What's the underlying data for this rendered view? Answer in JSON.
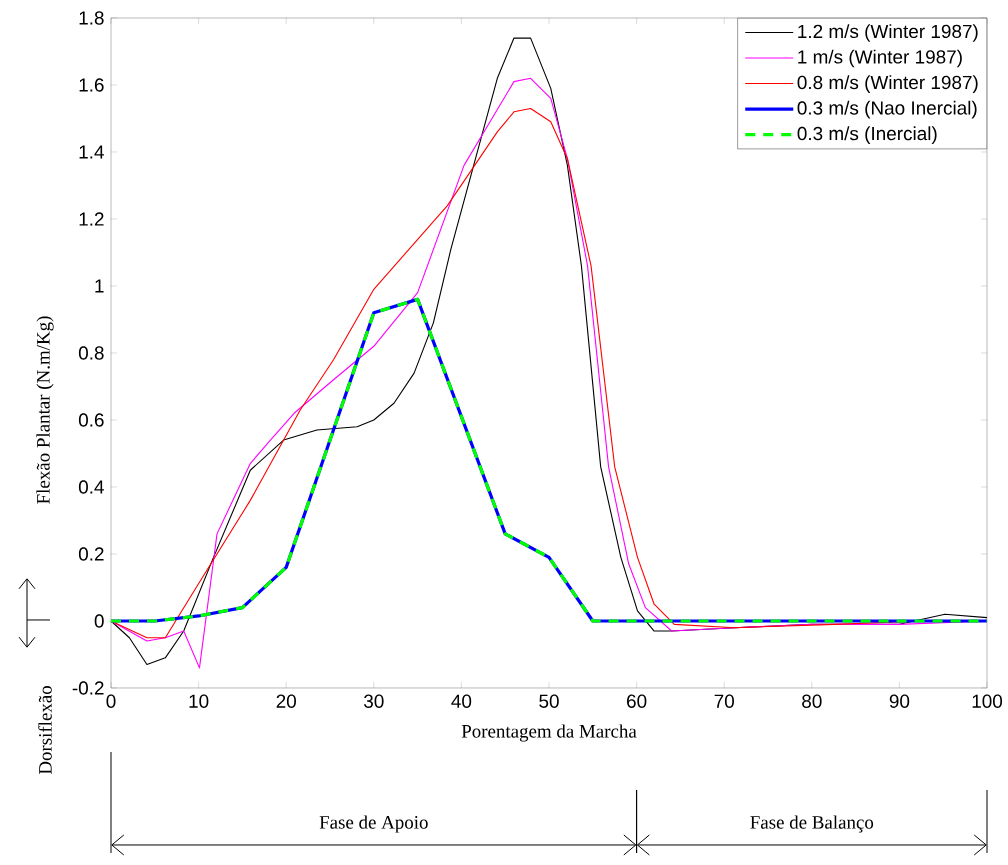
{
  "chart_data": {
    "type": "line",
    "xlabel": "Porentagem da Marcha",
    "ylabel": "Flexão Plantar (N.m/Kg)",
    "annotations": [
      "Dorsiflexão",
      "Fase de Apoio",
      "Fase de Balanço"
    ],
    "xlim": [
      0,
      100
    ],
    "ylim": [
      -0.2,
      1.8
    ],
    "xticks": [
      0,
      10,
      20,
      30,
      40,
      50,
      60,
      70,
      80,
      90,
      100
    ],
    "yticks": [
      -0.2,
      0,
      0.2,
      0.4,
      0.6,
      0.8,
      1,
      1.2,
      1.4,
      1.6,
      1.8
    ],
    "legend": "top right",
    "series": [
      {
        "name": "1.2 m/s (Winter 1987)",
        "color": "#000000",
        "x": [
          0,
          2.1,
          4.1,
          6.2,
          8.3,
          11.7,
          15.9,
          19.7,
          23.5,
          28.1,
          30,
          32.3,
          34.6,
          36.8,
          38.8,
          44.1,
          46,
          47.9,
          50.2,
          52.1,
          53.7,
          55.9,
          58.2,
          60.1,
          62,
          64,
          71.2,
          80,
          90,
          95.2,
          100
        ],
        "values": [
          0,
          -0.05,
          -0.13,
          -0.11,
          -0.03,
          0.19,
          0.45,
          0.54,
          0.57,
          0.58,
          0.6,
          0.65,
          0.74,
          0.89,
          1.11,
          1.62,
          1.74,
          1.74,
          1.59,
          1.36,
          1.06,
          0.46,
          0.19,
          0.03,
          -0.03,
          -0.03,
          -0.02,
          -0.01,
          -0.01,
          0.02,
          0.01
        ]
      },
      {
        "name": "1 m/s (Winter 1987)",
        "color": "#ff00ff",
        "x": [
          0,
          4.1,
          6.2,
          8.3,
          10.1,
          12.1,
          15.9,
          18.2,
          20.9,
          25.4,
          30,
          35,
          40.3,
          46,
          47.9,
          50.2,
          52.1,
          54.4,
          56.8,
          59.1,
          61,
          64,
          71.2,
          80,
          90,
          100
        ],
        "values": [
          0,
          -0.06,
          -0.05,
          -0.03,
          -0.14,
          0.26,
          0.47,
          0.54,
          0.62,
          0.72,
          0.82,
          0.98,
          1.36,
          1.61,
          1.62,
          1.56,
          1.38,
          1.06,
          0.46,
          0.17,
          0.04,
          -0.03,
          -0.02,
          -0.01,
          -0.01,
          0
        ]
      },
      {
        "name": "0.8 m/s (Winter 1987)",
        "color": "#ff0000",
        "x": [
          0,
          4.1,
          6.2,
          10.2,
          15.9,
          21.6,
          25.4,
          30,
          38.4,
          44.1,
          46,
          47.9,
          50.2,
          52.1,
          54.8,
          57.5,
          60.1,
          62,
          64.3,
          71.2,
          82.6,
          92.6,
          100
        ],
        "values": [
          0,
          -0.05,
          -0.05,
          0.12,
          0.36,
          0.63,
          0.78,
          0.99,
          1.24,
          1.46,
          1.52,
          1.53,
          1.49,
          1.38,
          1.06,
          0.46,
          0.19,
          0.05,
          -0.01,
          -0.02,
          -0.01,
          0,
          0
        ]
      },
      {
        "name": "0.3 m/s (Nao Inercial)",
        "color": "#0000ff",
        "line_style": "solid",
        "x": [
          0,
          5,
          10,
          15,
          20,
          30,
          35,
          45,
          50,
          55,
          100
        ],
        "values": [
          0,
          0,
          0.015,
          0.04,
          0.16,
          0.92,
          0.96,
          0.26,
          0.19,
          0,
          0
        ]
      },
      {
        "name": "0.3 m/s (Inercial)",
        "color": "#00ff00",
        "line_style": "dashed",
        "x": [
          0,
          5,
          10,
          15,
          20,
          30,
          35,
          45,
          50,
          55,
          100
        ],
        "values": [
          0,
          0,
          0.015,
          0.04,
          0.16,
          0.92,
          0.96,
          0.26,
          0.19,
          0,
          0
        ]
      }
    ]
  }
}
